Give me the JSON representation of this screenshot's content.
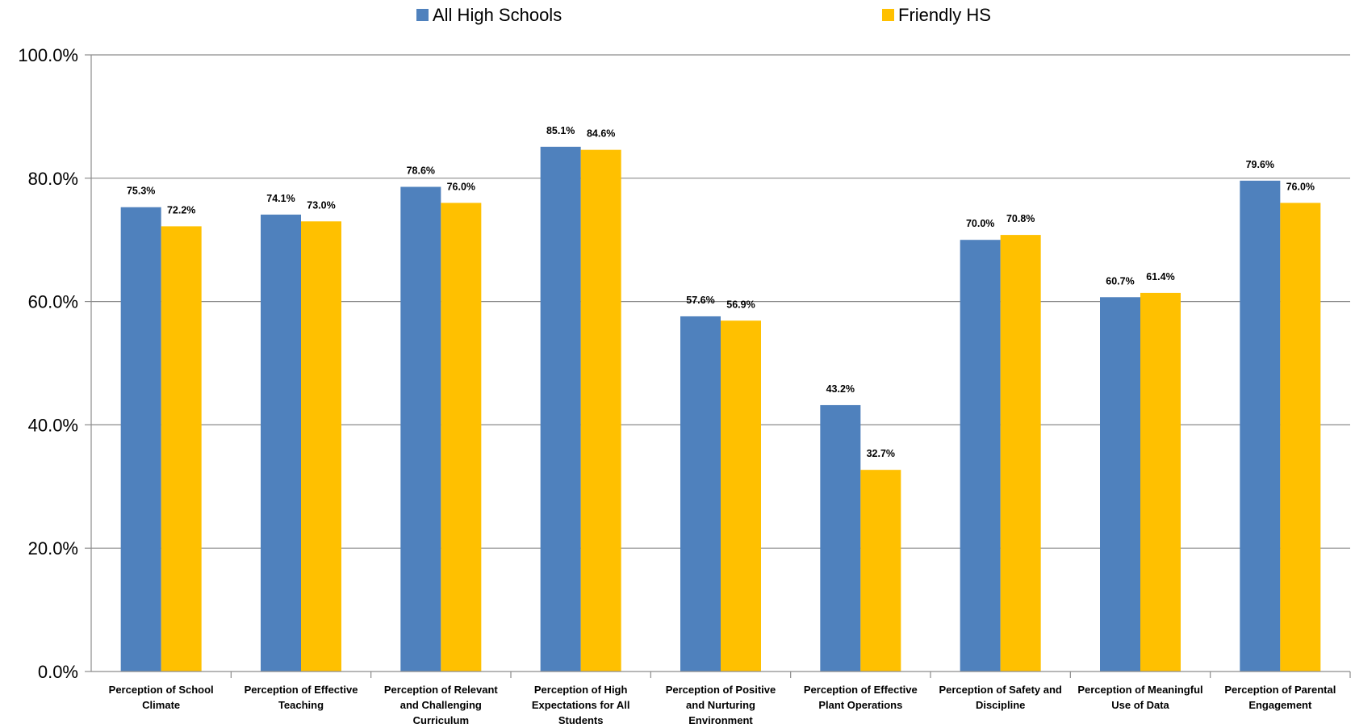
{
  "chart_data": {
    "type": "bar",
    "title": "",
    "xlabel": "",
    "ylabel": "",
    "ylim": [
      0,
      100
    ],
    "yticks": [
      "0.0%",
      "20.0%",
      "40.0%",
      "60.0%",
      "80.0%",
      "100.0%"
    ],
    "grid": true,
    "legend_position": "top",
    "categories": [
      [
        "Perception of School",
        "Climate"
      ],
      [
        "Perception of Effective",
        "Teaching"
      ],
      [
        "Perception of Relevant",
        "and Challenging",
        "Curriculum"
      ],
      [
        "Perception of High",
        "Expectations for All",
        "Students"
      ],
      [
        "Perception of Positive",
        "and Nurturing",
        "Environment"
      ],
      [
        "Perception of Effective",
        "Plant Operations"
      ],
      [
        "Perception of Safety and",
        "Discipline"
      ],
      [
        "Perception of Meaningful",
        "Use of Data"
      ],
      [
        "Perception of Parental",
        "Engagement"
      ]
    ],
    "series": [
      {
        "name": "All High Schools",
        "color": "#4F81BD",
        "values": [
          75.3,
          74.1,
          78.6,
          85.1,
          57.6,
          43.2,
          70.0,
          60.7,
          79.6
        ],
        "labels": [
          "75.3%",
          "74.1%",
          "78.6%",
          "85.1%",
          "57.6%",
          "43.2%",
          "70.0%",
          "60.7%",
          "79.6%"
        ]
      },
      {
        "name": "Friendly HS",
        "color": "#FFC000",
        "values": [
          72.2,
          73.0,
          76.0,
          84.6,
          56.9,
          32.7,
          70.8,
          61.4,
          76.0
        ],
        "labels": [
          "72.2%",
          "73.0%",
          "76.0%",
          "84.6%",
          "56.9%",
          "32.7%",
          "70.8%",
          "61.4%",
          "76.0%"
        ]
      }
    ]
  }
}
